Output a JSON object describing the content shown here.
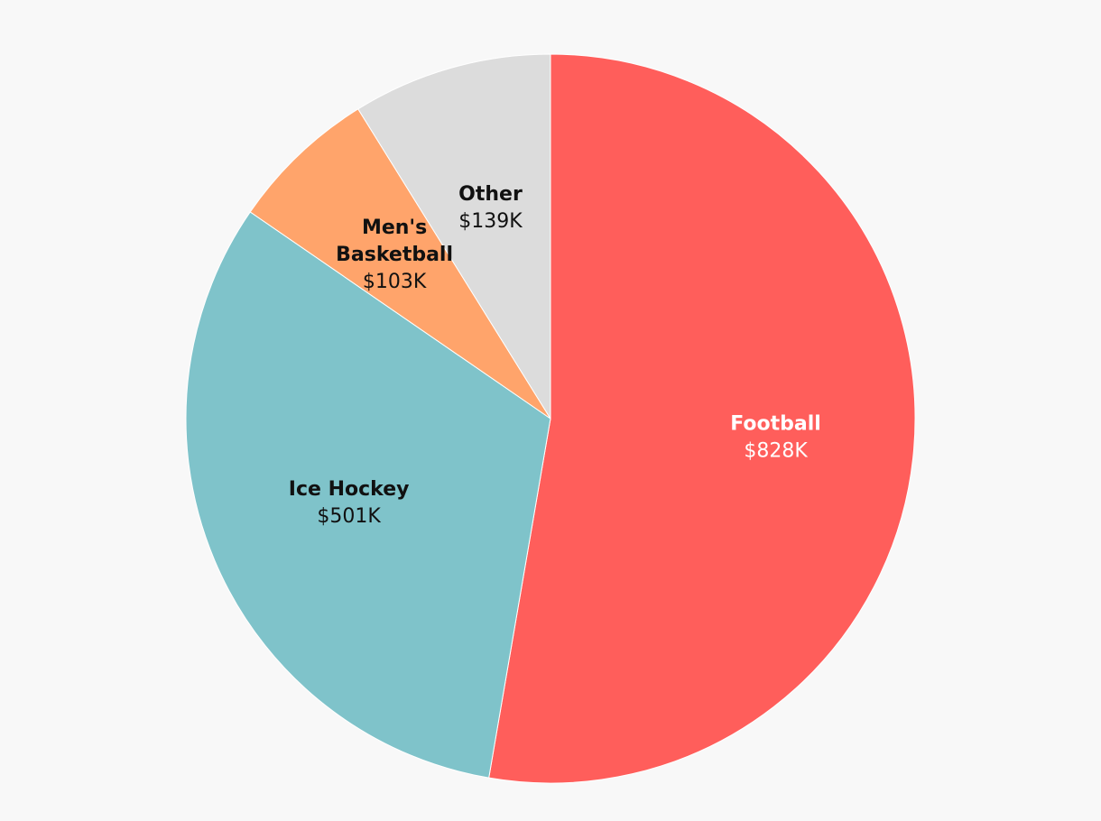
{
  "chart_data": {
    "type": "pie",
    "start_angle_deg": 0,
    "direction": "clockwise",
    "background_color": "#f8f8f8",
    "slice_border_color": "#ffffff",
    "categories": [
      "Football",
      "Ice Hockey",
      "Men's Basketball",
      "Other"
    ],
    "values": [
      828,
      501,
      103,
      139
    ],
    "labels": [
      "$828K",
      "$501K",
      "$103K",
      "$139K"
    ],
    "label_lines": [
      [
        "Football"
      ],
      [
        "Ice Hockey"
      ],
      [
        "Men's",
        "Basketball"
      ],
      [
        "Other"
      ]
    ],
    "colors": [
      "#ff5e5b",
      "#7fc3ca",
      "#ffa46b",
      "#dcdcdc"
    ],
    "label_colors": [
      "#ffffff",
      "#111111",
      "#111111",
      "#111111"
    ],
    "unit": "$K"
  }
}
